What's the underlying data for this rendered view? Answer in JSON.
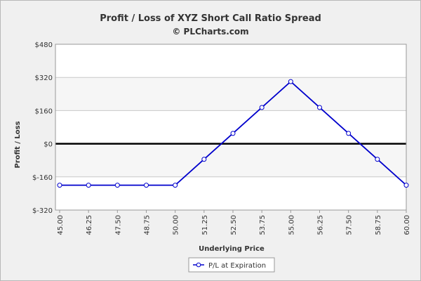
{
  "chart_data": {
    "type": "line",
    "title": "Profit / Loss of XYZ Short Call Ratio Spread",
    "subtitle": "© PLCharts.com",
    "xlabel": "Underlying Price",
    "ylabel": "Profit / Loss",
    "categories": [
      "45.00",
      "46.25",
      "47.50",
      "48.75",
      "50.00",
      "51.25",
      "52.50",
      "53.75",
      "55.00",
      "56.25",
      "57.50",
      "58.75",
      "60.00"
    ],
    "yticks": [
      "$480",
      "$320",
      "$160",
      "$0",
      "$-160",
      "$-320"
    ],
    "ytick_values": [
      480,
      320,
      160,
      0,
      -160,
      -320
    ],
    "ylim": [
      -320,
      480
    ],
    "grid": true,
    "legend_position": "bottom-center",
    "series": [
      {
        "name": "P/L at Expiration",
        "color": "#0000cc",
        "values": [
          -200,
          -200,
          -200,
          -200,
          -200,
          -75,
          50,
          175,
          300,
          175,
          50,
          -75,
          -200
        ]
      }
    ]
  }
}
